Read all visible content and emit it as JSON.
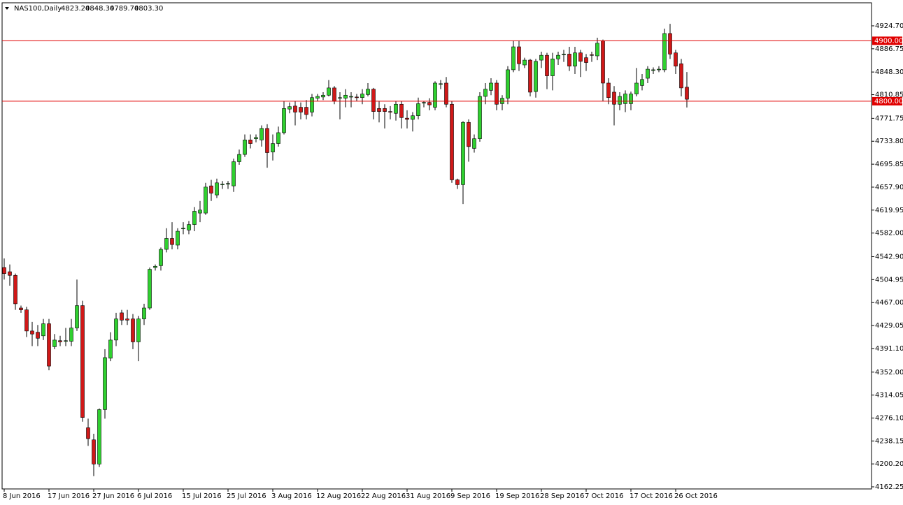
{
  "chart_data": {
    "type": "candlestick",
    "title": "NAS100,Daily",
    "header_values": [
      "4823.20",
      "4848.30",
      "4789.70",
      "4803.30"
    ],
    "categories": [
      "8 Jun 2016",
      null,
      null,
      null,
      null,
      null,
      null,
      null,
      "17 Jun 2016",
      null,
      null,
      null,
      null,
      null,
      null,
      null,
      "27 Jun 2016",
      null,
      null,
      null,
      null,
      null,
      null,
      null,
      "6 Jul 2016",
      null,
      null,
      null,
      null,
      null,
      null,
      null,
      "15 Jul 2016",
      null,
      null,
      null,
      null,
      null,
      null,
      null,
      "25 Jul 2016",
      null,
      null,
      null,
      null,
      null,
      null,
      null,
      "3 Aug 2016",
      null,
      null,
      null,
      null,
      null,
      null,
      null,
      "12 Aug 2016",
      null,
      null,
      null,
      null,
      null,
      null,
      null,
      "22 Aug 2016",
      null,
      null,
      null,
      null,
      null,
      null,
      null,
      "31 Aug 2016",
      null,
      null,
      null,
      null,
      null,
      null,
      null,
      "9 Sep 2016",
      null,
      null,
      null,
      null,
      null,
      null,
      null,
      "19 Sep 2016",
      null,
      null,
      null,
      null,
      null,
      null,
      null,
      "28 Sep 2016",
      null,
      null,
      null,
      null,
      null,
      null,
      null,
      "7 Oct 2016",
      null,
      null,
      null,
      null,
      null,
      null,
      null,
      "17 Oct 2016",
      null,
      null,
      null,
      null,
      null,
      null,
      null,
      "26 Oct 2016",
      null,
      null
    ],
    "open": [
      4525,
      4518,
      4512,
      4458,
      4455,
      4420,
      4418,
      4412,
      4432,
      4394,
      4404,
      4403,
      4403,
      4425,
      4462,
      4260,
      4240,
      4200,
      4290,
      4375,
      4405,
      4450,
      4440,
      4440,
      4402,
      4440,
      4458,
      4525,
      4528,
      4555,
      4573,
      4562,
      4590,
      4587,
      4596,
      4615,
      4615,
      4660,
      4645,
      4662,
      4664,
      4660,
      4700,
      4712,
      4736,
      4738,
      4736,
      4755,
      4716,
      4730,
      4748,
      4787,
      4792,
      4790,
      4790,
      4782,
      4805,
      4807,
      4810,
      4822,
      4806,
      4805,
      4808,
      4807,
      4806,
      4811,
      4820,
      4788,
      4788,
      4783,
      4780,
      4795,
      4772,
      4770,
      4776,
      4797,
      4798,
      4790,
      4828,
      4830,
      4795,
      4670,
      4662,
      4765,
      4722,
      4738,
      4808,
      4818,
      4830,
      4796,
      4805,
      4852,
      4890,
      4860,
      4868,
      4816,
      4868,
      4876,
      4842,
      4870,
      4878,
      4878,
      4858,
      4880,
      4872,
      4877,
      4875,
      4900,
      4830,
      4815,
      4795,
      4796,
      4796,
      4812,
      4826,
      4838,
      4852,
      4852,
      4852,
      4912,
      4880,
      4862,
      4823.2
    ],
    "high": [
      4540,
      4530,
      4515,
      4462,
      4460,
      4435,
      4430,
      4440,
      4440,
      4415,
      4412,
      4425,
      4440,
      4505,
      4470,
      4275,
      4250,
      4292,
      4390,
      4418,
      4450,
      4455,
      4455,
      4448,
      4445,
      4465,
      4525,
      4530,
      4558,
      4590,
      4600,
      4590,
      4600,
      4602,
      4625,
      4635,
      4665,
      4670,
      4672,
      4668,
      4668,
      4705,
      4720,
      4745,
      4745,
      4745,
      4760,
      4762,
      4745,
      4758,
      4800,
      4798,
      4800,
      4798,
      4802,
      4812,
      4812,
      4815,
      4835,
      4825,
      4815,
      4820,
      4815,
      4812,
      4820,
      4830,
      4822,
      4800,
      4795,
      4792,
      4800,
      4800,
      4785,
      4782,
      4806,
      4800,
      4805,
      4833,
      4835,
      4840,
      4800,
      4672,
      4767,
      4770,
      4745,
      4815,
      4830,
      4838,
      4835,
      4810,
      4858,
      4900,
      4900,
      4872,
      4870,
      4870,
      4882,
      4880,
      4880,
      4882,
      4885,
      4890,
      4890,
      4885,
      4878,
      4882,
      4905,
      4902,
      4838,
      4825,
      4815,
      4818,
      4816,
      4855,
      4845,
      4858,
      4856,
      4858,
      4920,
      4928,
      4885,
      4870,
      4848.3
    ],
    "low": [
      4505,
      4495,
      4455,
      4450,
      4410,
      4395,
      4395,
      4405,
      4355,
      4390,
      4395,
      4395,
      4395,
      4420,
      4270,
      4230,
      4180,
      4195,
      4275,
      4370,
      4395,
      4430,
      4430,
      4390,
      4370,
      4430,
      4455,
      4520,
      4520,
      4550,
      4555,
      4555,
      4580,
      4580,
      4585,
      4600,
      4612,
      4635,
      4640,
      4655,
      4655,
      4650,
      4695,
      4708,
      4722,
      4732,
      4725,
      4690,
      4702,
      4725,
      4745,
      4780,
      4760,
      4770,
      4770,
      4775,
      4800,
      4802,
      4808,
      4795,
      4770,
      4790,
      4790,
      4800,
      4795,
      4808,
      4770,
      4765,
      4755,
      4770,
      4768,
      4755,
      4755,
      4750,
      4770,
      4790,
      4785,
      4785,
      4820,
      4790,
      4665,
      4655,
      4630,
      4700,
      4715,
      4733,
      4795,
      4810,
      4785,
      4785,
      4795,
      4848,
      4850,
      4855,
      4808,
      4806,
      4855,
      4820,
      4818,
      4860,
      4865,
      4850,
      4845,
      4840,
      4850,
      4865,
      4868,
      4800,
      4795,
      4760,
      4785,
      4782,
      4785,
      4808,
      4818,
      4830,
      4845,
      4848,
      4848,
      4870,
      4845,
      4808,
      4789.7
    ],
    "close": [
      4515,
      4512,
      4465,
      4455,
      4420,
      4415,
      4408,
      4432,
      4362,
      4405,
      4402,
      4404,
      4425,
      4462,
      4277,
      4242,
      4200,
      4290,
      4376,
      4405,
      4440,
      4438,
      4438,
      4402,
      4440,
      4458,
      4522,
      4527,
      4555,
      4573,
      4563,
      4585,
      4590,
      4596,
      4618,
      4620,
      4658,
      4648,
      4665,
      4663,
      4664,
      4700,
      4712,
      4736,
      4730,
      4740,
      4755,
      4715,
      4730,
      4748,
      4788,
      4791,
      4782,
      4782,
      4778,
      4806,
      4808,
      4810,
      4822,
      4800,
      4806,
      4810,
      4808,
      4806,
      4812,
      4820,
      4783,
      4783,
      4783,
      4782,
      4795,
      4773,
      4770,
      4776,
      4796,
      4798,
      4794,
      4830,
      4829,
      4795,
      4670,
      4662,
      4765,
      4725,
      4738,
      4808,
      4820,
      4830,
      4795,
      4805,
      4852,
      4890,
      4862,
      4868,
      4815,
      4866,
      4876,
      4842,
      4870,
      4876,
      4878,
      4858,
      4880,
      4866,
      4864,
      4876,
      4896,
      4830,
      4806,
      4795,
      4808,
      4812,
      4812,
      4830,
      4836,
      4853,
      4852,
      4853,
      4912,
      4878,
      4858,
      4822,
      4803.3
    ],
    "up_color": "#2fd02f",
    "down_color": "#d01818",
    "ylim": [
      4158.8,
      4962.8
    ],
    "yticks": [
      {
        "value": 4924.7,
        "label": "4924.70"
      },
      {
        "value": 4886.75,
        "label": "4886.75"
      },
      {
        "value": 4848.3,
        "label": "4848.30"
      },
      {
        "value": 4810.85,
        "label": "4810.85"
      },
      {
        "value": 4771.75,
        "label": "4771.75"
      },
      {
        "value": 4733.8,
        "label": "4733.80"
      },
      {
        "value": 4695.85,
        "label": "4695.85"
      },
      {
        "value": 4657.9,
        "label": "4657.90"
      },
      {
        "value": 4619.95,
        "label": "4619.95"
      },
      {
        "value": 4582,
        "label": "4582.00"
      },
      {
        "value": 4542.9,
        "label": "4542.90"
      },
      {
        "value": 4504.95,
        "label": "4504.95"
      },
      {
        "value": 4467,
        "label": "4467.00"
      },
      {
        "value": 4429.05,
        "label": "4429.05"
      },
      {
        "value": 4391.1,
        "label": "4391.10"
      },
      {
        "value": 4352,
        "label": "4352.00"
      },
      {
        "value": 4314.05,
        "label": "4314.05"
      },
      {
        "value": 4276.1,
        "label": "4276.10"
      },
      {
        "value": 4238.15,
        "label": "4238.15"
      },
      {
        "value": 4200.2,
        "label": "4200.20"
      },
      {
        "value": 4162.25,
        "label": "4162.25"
      }
    ],
    "levels": [
      {
        "value": 4900,
        "label": "4900.00"
      },
      {
        "value": 4800,
        "label": "4800.00"
      }
    ],
    "level_color": "#e00000"
  }
}
